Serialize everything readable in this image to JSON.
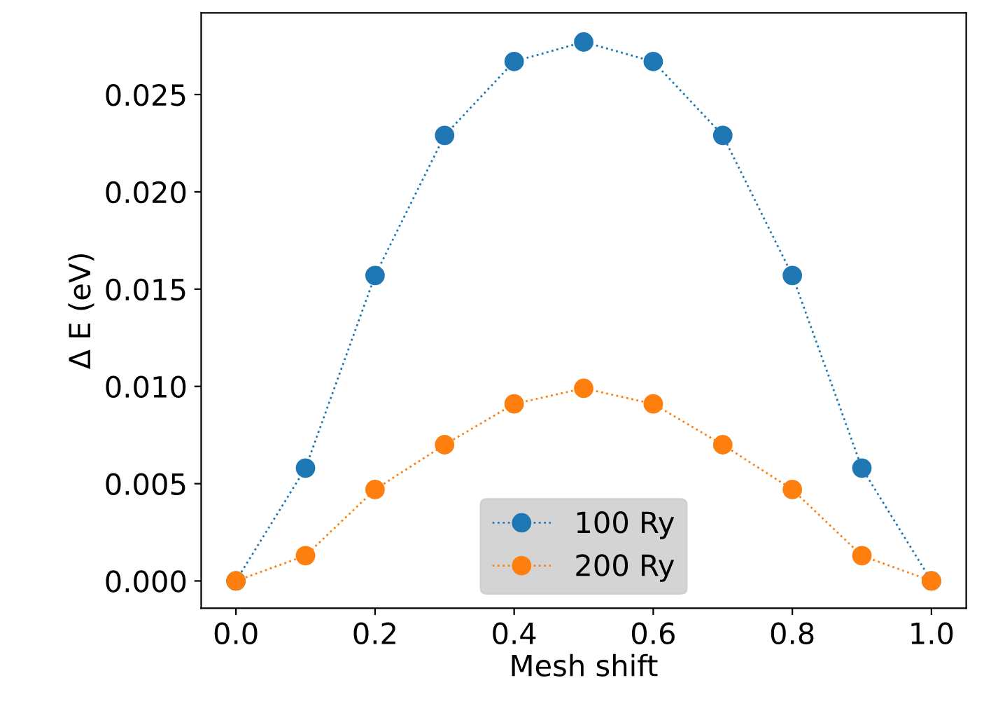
{
  "chart_data": {
    "type": "line",
    "xlabel": "Mesh shift",
    "ylabel": "Δ E (eV)",
    "x": [
      0.0,
      0.1,
      0.2,
      0.3,
      0.4,
      0.5,
      0.6,
      0.7,
      0.8,
      0.9,
      1.0
    ],
    "series": [
      {
        "name": "100 Ry",
        "color": "#1f77b4",
        "values": [
          0.0,
          0.0058,
          0.0157,
          0.0229,
          0.0267,
          0.0277,
          0.0267,
          0.0229,
          0.0157,
          0.0058,
          0.0
        ]
      },
      {
        "name": "200 Ry",
        "color": "#ff7f0e",
        "values": [
          0.0,
          0.0013,
          0.0047,
          0.007,
          0.0091,
          0.0099,
          0.0091,
          0.007,
          0.0047,
          0.0013,
          0.0
        ]
      }
    ],
    "xlim": [
      -0.05,
      1.05
    ],
    "ylim": [
      -0.0014,
      0.0292
    ],
    "xticks": [
      {
        "value": 0.0,
        "label": "0.0"
      },
      0.2,
      0.4,
      0.6,
      0.8,
      {
        "value": 1.0,
        "label": "1.0"
      }
    ],
    "yticks": [
      {
        "value": 0.0,
        "label": "0.000"
      },
      {
        "value": 0.005,
        "label": "0.005"
      },
      {
        "value": 0.01,
        "label": "0.010"
      },
      {
        "value": 0.015,
        "label": "0.015"
      },
      {
        "value": 0.02,
        "label": "0.020"
      },
      {
        "value": 0.025,
        "label": "0.025"
      }
    ],
    "marker": "circle",
    "line_style": "dotted",
    "legend": "bottom",
    "grid": false
  }
}
